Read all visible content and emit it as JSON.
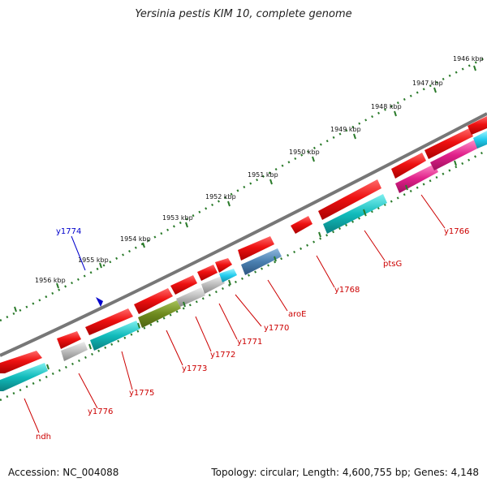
{
  "title": "Yersinia pestis KIM 10, complete genome",
  "footer": {
    "accession": "Accession: NC_004088",
    "summary": "Topology: circular; Length: 4,600,755 bp; Genes: 4,148"
  },
  "scale_labels": [
    "1946 kbp",
    "1947 kbp",
    "1948 kbp",
    "1949 kbp",
    "1950 kbp",
    "1951 kbp",
    "1952 kbp",
    "1953 kbp",
    "1954 kbp",
    "1955 kbp",
    "1956 kbp"
  ],
  "genes": [
    {
      "name": "y1766",
      "color": "#cc0000"
    },
    {
      "name": "ptsG",
      "color": "#cc0000"
    },
    {
      "name": "y1768",
      "color": "#cc0000"
    },
    {
      "name": "aroE",
      "color": "#cc0000"
    },
    {
      "name": "y1770",
      "color": "#cc0000"
    },
    {
      "name": "y1771",
      "color": "#cc0000"
    },
    {
      "name": "y1772",
      "color": "#cc0000"
    },
    {
      "name": "y1773",
      "color": "#cc0000"
    },
    {
      "name": "y1775",
      "color": "#cc0000"
    },
    {
      "name": "y1776",
      "color": "#cc0000"
    },
    {
      "name": "ndh",
      "color": "#cc0000"
    },
    {
      "name": "y1774",
      "color": "#0000cc"
    }
  ],
  "colors": {
    "backbone": "#777777",
    "ruler": "#2a7a2a",
    "cds_forward": "#ee1111",
    "cds_reverse_cyan": "#11bbbb",
    "cds_pink": "#e0208a",
    "cds_blue": "#4a7fb0",
    "cds_olive": "#6e8a1e",
    "cds_gray": "#bbbbbb",
    "cds_bright_cyan": "#22ccee",
    "marker": "#0000cc"
  }
}
